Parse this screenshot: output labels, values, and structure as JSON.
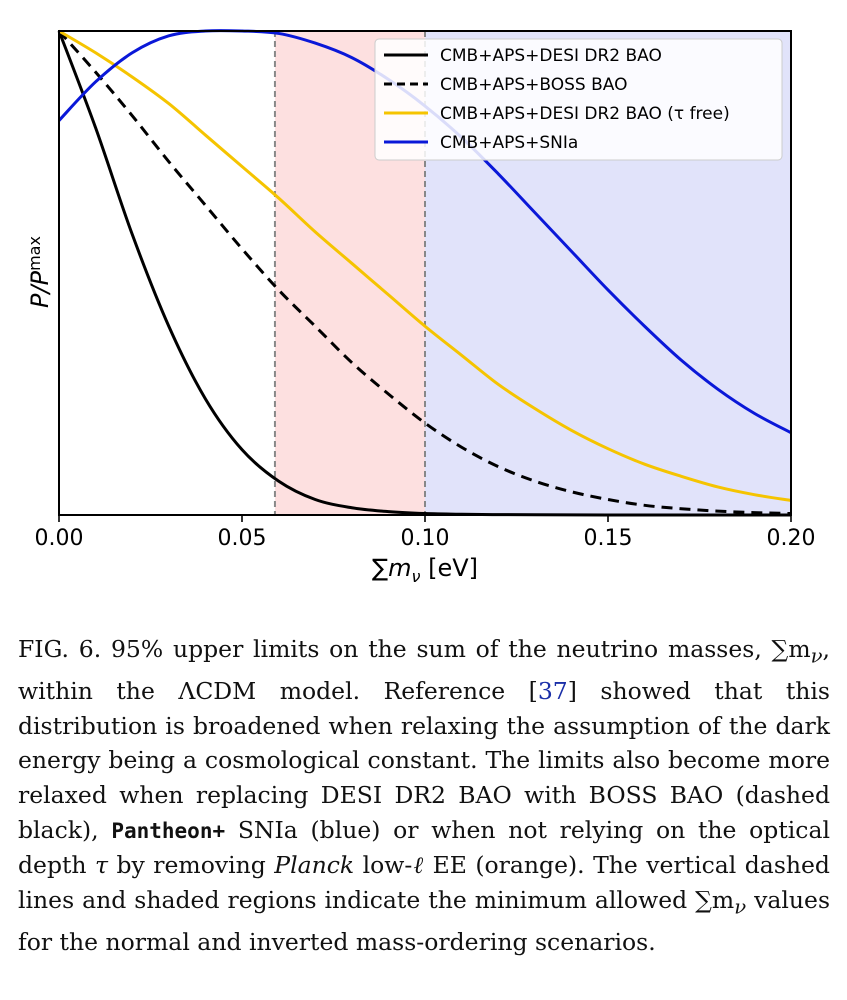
{
  "chart_data": {
    "type": "line",
    "xlabel": "∑m",
    "xlabel_sub": "ν",
    "xlabel_unit": " [eV]",
    "ylabel": "P/P",
    "ylabel_sub": "max",
    "xlim": [
      0.0,
      0.2
    ],
    "ylim": [
      0.0,
      1.0
    ],
    "xticks": [
      "0.00",
      "0.05",
      "0.10",
      "0.15",
      "0.20"
    ],
    "xtick_values": [
      0.0,
      0.05,
      0.1,
      0.15,
      0.2
    ],
    "grid": false,
    "legend_position": "top-right",
    "vertical_lines": [
      0.059,
      0.1
    ],
    "shaded_regions": [
      {
        "from": 0.059,
        "to": 0.1,
        "color": "#fde0e0"
      },
      {
        "from": 0.1,
        "to": 0.2,
        "color": "#e1e3fa"
      }
    ],
    "x": [
      0.0,
      0.01,
      0.02,
      0.03,
      0.04,
      0.05,
      0.06,
      0.07,
      0.08,
      0.09,
      0.1,
      0.11,
      0.12,
      0.13,
      0.14,
      0.15,
      0.16,
      0.17,
      0.18,
      0.19,
      0.2
    ],
    "series": [
      {
        "name": "CMB+APS+DESI DR2 BAO",
        "color": "#000000",
        "dash": "solid",
        "values": [
          1.0,
          0.8,
          0.58,
          0.39,
          0.24,
          0.135,
          0.07,
          0.032,
          0.015,
          0.007,
          0.003,
          0.0015,
          0.0008,
          0.0004,
          0.0002,
          0.0001,
          0.0,
          0.0,
          0.0,
          0.0,
          0.0
        ]
      },
      {
        "name": "CMB+APS+BOSS BAO",
        "color": "#000000",
        "dash": "dashed",
        "values": [
          1.0,
          0.915,
          0.825,
          0.73,
          0.64,
          0.55,
          0.465,
          0.39,
          0.315,
          0.25,
          0.19,
          0.14,
          0.1,
          0.07,
          0.048,
          0.032,
          0.02,
          0.013,
          0.008,
          0.005,
          0.003
        ]
      },
      {
        "name": "CMB+APS+DESI DR2 BAO (τ free)",
        "color": "#f5c400",
        "dash": "solid",
        "values": [
          1.0,
          0.955,
          0.905,
          0.85,
          0.785,
          0.72,
          0.655,
          0.585,
          0.52,
          0.455,
          0.39,
          0.33,
          0.27,
          0.22,
          0.175,
          0.137,
          0.105,
          0.08,
          0.058,
          0.042,
          0.03
        ]
      },
      {
        "name": "CMB+APS+SNIa",
        "color": "#0a18d8",
        "dash": "solid",
        "values": [
          0.815,
          0.895,
          0.955,
          0.99,
          1.0,
          1.0,
          0.995,
          0.975,
          0.945,
          0.9,
          0.845,
          0.78,
          0.705,
          0.625,
          0.545,
          0.465,
          0.39,
          0.32,
          0.26,
          0.21,
          0.17
        ]
      }
    ]
  },
  "caption": {
    "label": "FIG. 6.",
    "text_1": " 95% upper limits on the sum of the neutrino masses, ∑m",
    "sub_nu_1": "ν",
    "text_2": ", within the ΛCDM model. Reference [",
    "ref": "37",
    "text_3": "] showed that this distribution is broadened when relaxing the assumption of the dark energy being a cosmological constant. The limits also become more relaxed when replacing DESI DR2 BAO with BOSS BAO (dashed black), ",
    "pantheon": "Pantheon+",
    "text_4": " SNIa (blue) or when not relying on the optical depth ",
    "tau": "τ",
    "text_5": " by removing ",
    "planck": "Planck",
    "text_6": " low-",
    "ell": "ℓ",
    "text_7": " EE (orange). The vertical dashed lines and shaded regions indicate the minimum allowed ∑m",
    "sub_nu_2": "ν",
    "text_8": " values for the normal and inverted mass-ordering scenarios."
  }
}
